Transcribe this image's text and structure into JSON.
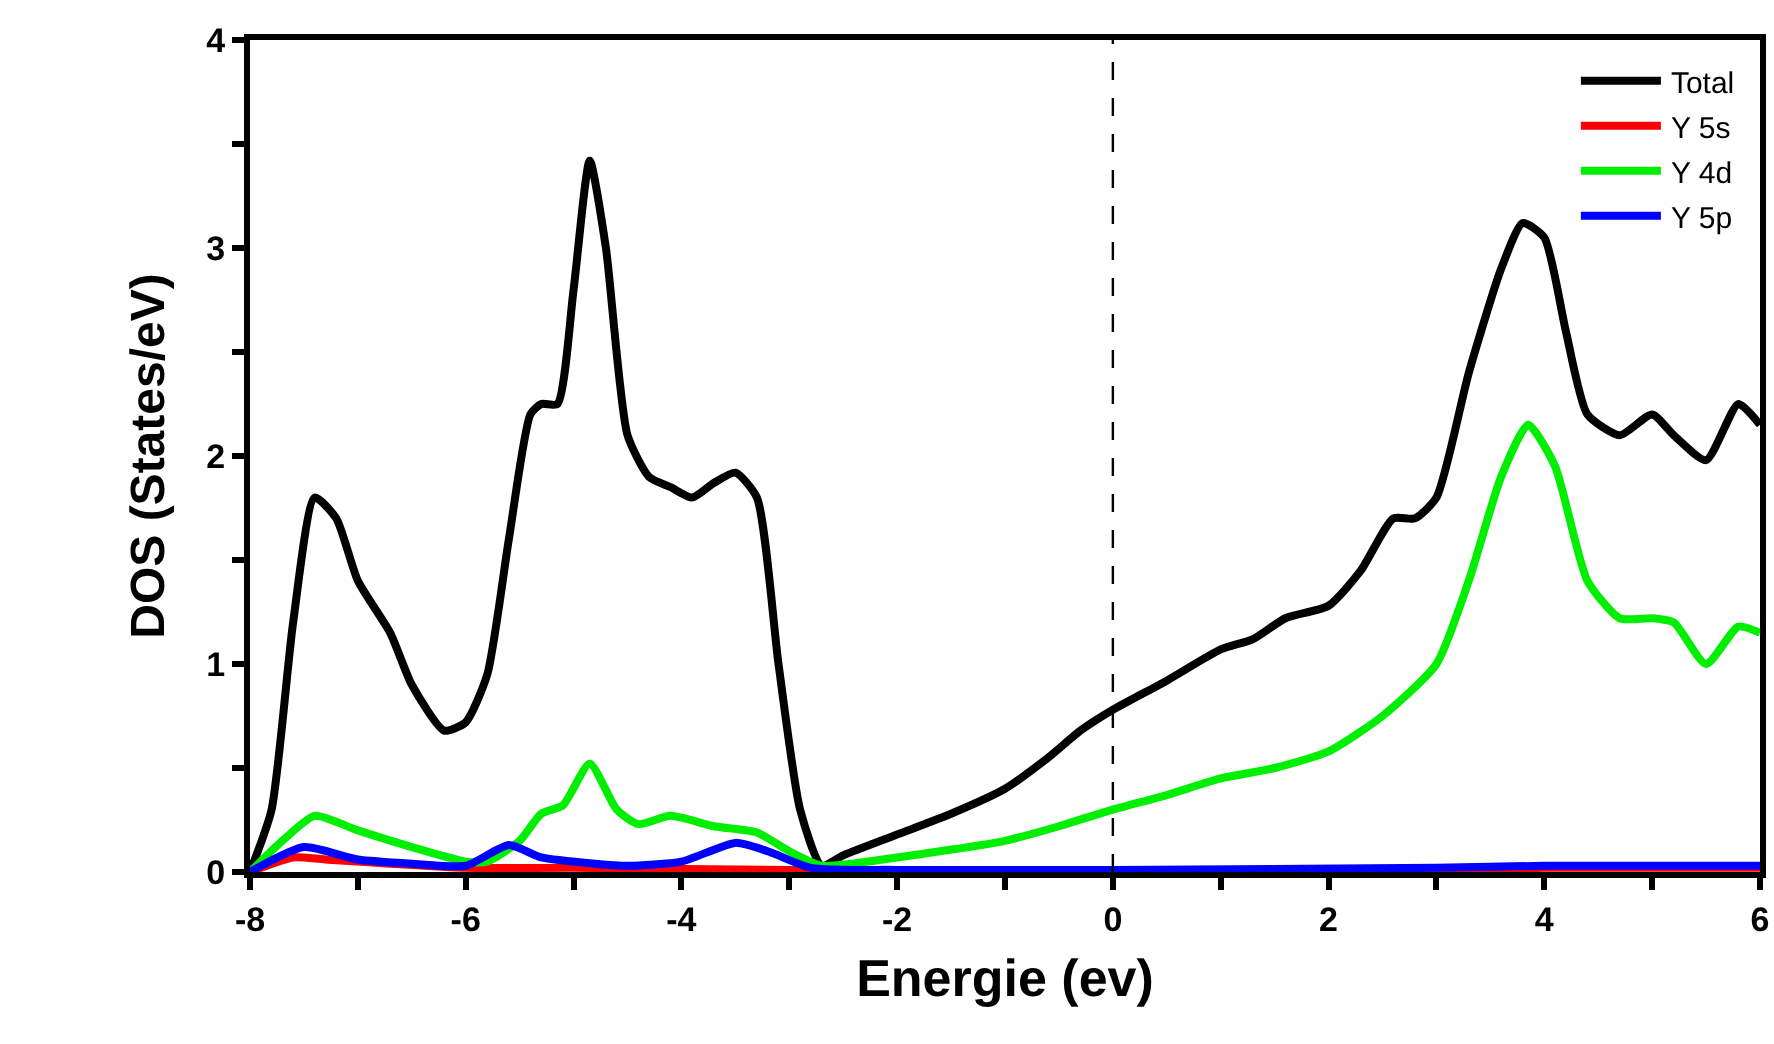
{
  "chart_data": {
    "type": "line",
    "xlabel": "Energie (ev)",
    "ylabel": "DOS (States/eV)",
    "xlim": [
      -8,
      6
    ],
    "ylim": [
      0,
      4
    ],
    "xticks": [
      -8,
      {
        "value": -7,
        "label": null
      },
      -6,
      {
        "value": -5,
        "label": null
      },
      -4,
      {
        "value": -3,
        "label": null
      },
      -2,
      {
        "value": -1,
        "label": null
      },
      0,
      {
        "value": 1,
        "label": null
      },
      2,
      {
        "value": 3,
        "label": null
      },
      4,
      {
        "value": 5,
        "label": null
      },
      6
    ],
    "yticks": [
      0,
      {
        "value": 0.5,
        "label": null
      },
      1,
      {
        "value": 1.5,
        "label": null
      },
      2,
      {
        "value": 2.5,
        "label": null
      },
      3,
      {
        "value": 3.5,
        "label": null
      },
      4
    ],
    "grid": false,
    "legend": "top right",
    "marker": "none",
    "line_style": "solid",
    "ref_lines": [
      {
        "axis": "x",
        "value": 0,
        "color": "#000000",
        "line_style": "dashed"
      }
    ],
    "series": [
      {
        "name": "Total",
        "color": "#000000",
        "x": [
          -8,
          -7.8,
          -7.6,
          -7.4,
          -7.2,
          -7.0,
          -6.7,
          -6.5,
          -6.2,
          -6.0,
          -5.8,
          -5.6,
          -5.4,
          -5.3,
          -5.15,
          -5.0,
          -4.85,
          -4.7,
          -4.5,
          -4.3,
          -4.1,
          -3.9,
          -3.7,
          -3.5,
          -3.3,
          -3.1,
          -2.9,
          -2.7,
          -2.5,
          -2.0,
          -1.5,
          -1.0,
          -0.6,
          -0.3,
          0,
          0.5,
          1.0,
          1.3,
          1.6,
          2.0,
          2.3,
          2.6,
          2.8,
          3.0,
          3.3,
          3.6,
          3.8,
          4.0,
          4.2,
          4.4,
          4.7,
          5.0,
          5.2,
          5.5,
          5.8,
          6.0
        ],
        "values": [
          0,
          0.3,
          1.2,
          1.8,
          1.7,
          1.4,
          1.15,
          0.9,
          0.68,
          0.72,
          0.95,
          1.6,
          2.2,
          2.25,
          2.25,
          2.8,
          3.42,
          3.0,
          2.1,
          1.9,
          1.85,
          1.8,
          1.87,
          1.92,
          1.8,
          1.0,
          0.3,
          0.03,
          0.08,
          0.18,
          0.28,
          0.4,
          0.55,
          0.68,
          0.78,
          0.92,
          1.07,
          1.12,
          1.22,
          1.28,
          1.45,
          1.7,
          1.7,
          1.8,
          2.4,
          2.9,
          3.12,
          3.05,
          2.6,
          2.2,
          2.1,
          2.2,
          2.1,
          1.98,
          2.25,
          2.15
        ]
      },
      {
        "name": "Y 5s",
        "color": "#ff0000",
        "x": [
          -8,
          -7.6,
          -7.3,
          -6,
          -5,
          -3,
          0,
          2,
          4,
          6
        ],
        "values": [
          0,
          0.07,
          0.06,
          0.02,
          0.02,
          0.01,
          0,
          0,
          0.02,
          0.02
        ]
      },
      {
        "name": "Y 4d",
        "color": "#00ee00",
        "x": [
          -8,
          -7.7,
          -7.4,
          -7.0,
          -6.5,
          -6.0,
          -5.8,
          -5.5,
          -5.3,
          -5.1,
          -4.85,
          -4.6,
          -4.4,
          -4.1,
          -3.7,
          -3.3,
          -3.0,
          -2.7,
          -2,
          -1,
          -0.5,
          0,
          0.5,
          1,
          1.5,
          2,
          2.5,
          3,
          3.3,
          3.6,
          3.85,
          4.1,
          4.4,
          4.7,
          5.0,
          5.2,
          5.5,
          5.8,
          6
        ],
        "values": [
          0,
          0.15,
          0.27,
          0.2,
          0.12,
          0.05,
          0.05,
          0.15,
          0.28,
          0.32,
          0.52,
          0.3,
          0.23,
          0.27,
          0.22,
          0.19,
          0.1,
          0.03,
          0.07,
          0.15,
          0.22,
          0.3,
          0.37,
          0.45,
          0.5,
          0.58,
          0.75,
          1.0,
          1.4,
          1.9,
          2.15,
          1.95,
          1.4,
          1.22,
          1.22,
          1.2,
          1.0,
          1.18,
          1.15
        ]
      },
      {
        "name": "Y 5p",
        "color": "#0000ff",
        "x": [
          -8,
          -7.5,
          -7,
          -6.5,
          -6,
          -5.6,
          -5.3,
          -4.8,
          -4.5,
          -4,
          -3.5,
          -3.2,
          -2.8,
          -2,
          0,
          3,
          4,
          6
        ],
        "values": [
          0,
          0.12,
          0.06,
          0.04,
          0.03,
          0.13,
          0.07,
          0.04,
          0.03,
          0.05,
          0.14,
          0.1,
          0.02,
          0.01,
          0.01,
          0.02,
          0.03,
          0.03
        ]
      }
    ]
  }
}
